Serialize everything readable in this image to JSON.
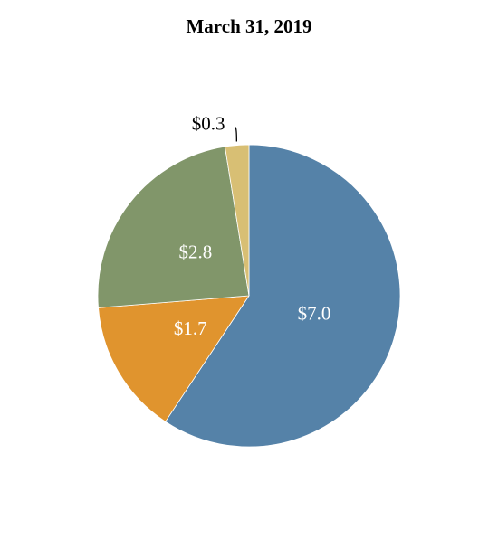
{
  "chart_data": {
    "type": "pie",
    "title": "March 31, 2019",
    "categories": [
      "",
      "",
      "",
      ""
    ],
    "values": [
      7.0,
      1.7,
      2.8,
      0.3
    ],
    "labels": [
      "$7.0",
      "$1.7",
      "$2.8",
      "$0.3"
    ],
    "colors": [
      "#5582a8",
      "#e0942e",
      "#81966a",
      "#d8bf74"
    ],
    "label_colors": [
      "#ffffff",
      "#ffffff",
      "#ffffff",
      "#000000"
    ],
    "start_angle": "12 o'clock",
    "direction": "clockwise",
    "legend": "none"
  }
}
